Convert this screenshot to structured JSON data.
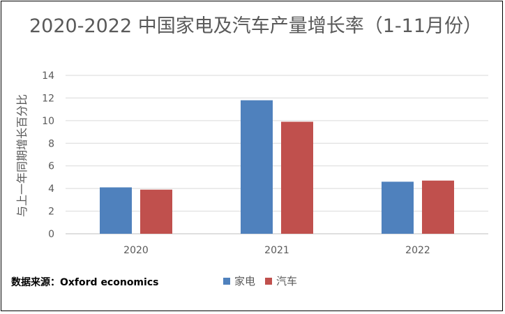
{
  "chart_data": {
    "type": "bar",
    "title": "2020-2022 中国家电及汽车产量增长率（1-11月份）",
    "ylabel": "与上一年同期增长百分比",
    "xlabel": "",
    "categories": [
      "2020",
      "2021",
      "2022"
    ],
    "series": [
      {
        "name": "家电",
        "values": [
          4.1,
          11.8,
          4.6
        ],
        "color": "#4F81BD"
      },
      {
        "name": "汽车",
        "values": [
          3.9,
          9.9,
          4.7
        ],
        "color": "#C0504D"
      }
    ],
    "ylim": [
      0,
      14
    ],
    "yticks": [
      0,
      2,
      4,
      6,
      8,
      10,
      12,
      14
    ],
    "grid": true,
    "legend_position": "bottom"
  },
  "source": "数据来源：Oxford economics"
}
